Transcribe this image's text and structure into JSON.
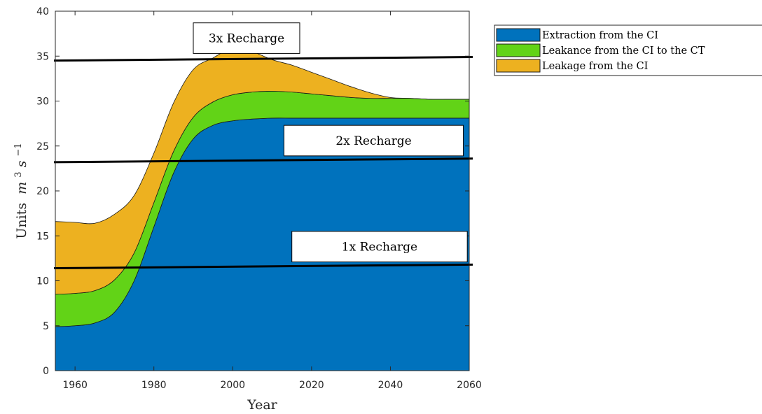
{
  "chart_data": {
    "type": "area",
    "stacked": true,
    "title": "",
    "xlabel": "Year",
    "ylabel": "Units m^3 s^-1",
    "ylabel_parts": {
      "text": "Units",
      "base": "m",
      "sup1": "3",
      "mid": "s",
      "sup2": "−1"
    },
    "xlim": [
      1955,
      2060
    ],
    "ylim": [
      0,
      40
    ],
    "xticks": [
      1960,
      1980,
      2000,
      2020,
      2040,
      2060
    ],
    "yticks": [
      0,
      5,
      10,
      15,
      20,
      25,
      30,
      35,
      40
    ],
    "grid": false,
    "legend_position": "outside-right-top",
    "x": [
      1955,
      1960,
      1965,
      1970,
      1975,
      1980,
      1985,
      1990,
      1995,
      2000,
      2005,
      2010,
      2015,
      2020,
      2025,
      2030,
      2035,
      2040,
      2045,
      2050,
      2055,
      2060
    ],
    "series": [
      {
        "name": "Extraction from the CI",
        "color": "#0072BD",
        "values": [
          4.9,
          5.0,
          5.3,
          6.5,
          10.0,
          16.0,
          22.0,
          25.8,
          27.3,
          27.8,
          28.0,
          28.1,
          28.1,
          28.1,
          28.1,
          28.1,
          28.1,
          28.1,
          28.1,
          28.1,
          28.1,
          28.1
        ]
      },
      {
        "name": "Leakance from the CI to the CT",
        "color": "#62D317",
        "values": [
          3.6,
          3.6,
          3.6,
          3.6,
          3.1,
          2.7,
          2.4,
          2.4,
          2.6,
          2.9,
          3.0,
          3.0,
          2.9,
          2.7,
          2.5,
          2.3,
          2.2,
          2.2,
          2.2,
          2.1,
          2.1,
          2.1
        ]
      },
      {
        "name": "Leakage from the CI",
        "color": "#EDB120",
        "values": [
          8.1,
          7.9,
          7.5,
          7.3,
          6.4,
          5.5,
          5.4,
          5.3,
          4.9,
          5.2,
          4.5,
          3.5,
          3.0,
          2.4,
          1.8,
          1.2,
          0.6,
          0.1,
          0.0,
          0.0,
          0.0,
          0.0
        ]
      }
    ],
    "reference_lines": [
      {
        "label": "1x Recharge",
        "y_start": 11.4,
        "y_end": 11.8
      },
      {
        "label": "2x Recharge",
        "y_start": 23.2,
        "y_end": 23.6
      },
      {
        "label": "3x Recharge",
        "y_start": 34.5,
        "y_end": 34.9
      }
    ],
    "annotations": [
      {
        "text": "3x Recharge",
        "x_left": 1990,
        "x_right": 2017,
        "y_top": 38.7,
        "y_bottom": 35.3
      },
      {
        "text": "2x Recharge",
        "x_left": 2013,
        "x_right": 2058.5,
        "y_top": 27.3,
        "y_bottom": 23.9
      },
      {
        "text": "1x Recharge",
        "x_left": 2015,
        "x_right": 2059.5,
        "y_top": 15.5,
        "y_bottom": 12.1
      }
    ]
  }
}
